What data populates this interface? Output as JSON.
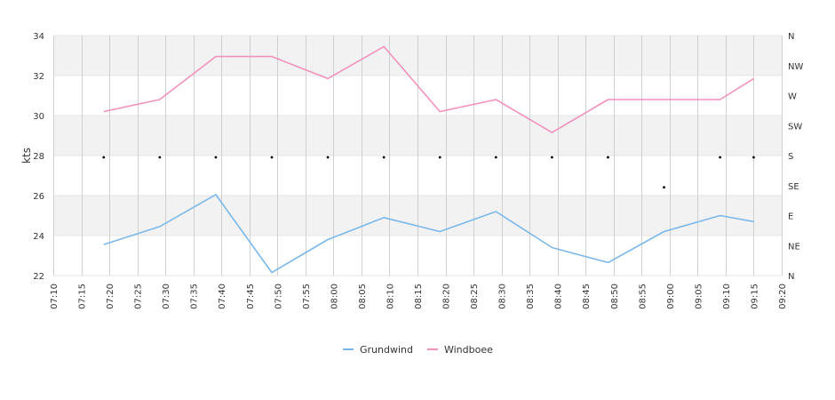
{
  "chart_data": {
    "type": "line",
    "ylabel": "kts",
    "ylim": [
      22,
      34
    ],
    "y_ticks": [
      "22",
      "24",
      "26",
      "28",
      "30",
      "32",
      "34"
    ],
    "x_tick_labels": [
      "07:10",
      "07:15",
      "07:20",
      "07:25",
      "07:30",
      "07:35",
      "07:40",
      "07:45",
      "07:50",
      "07:55",
      "08:00",
      "08:05",
      "08:10",
      "08:15",
      "08:20",
      "08:25",
      "08:30",
      "08:35",
      "08:40",
      "08:45",
      "08:50",
      "08:55",
      "09:00",
      "09:05",
      "09:10",
      "09:15",
      "09:20"
    ],
    "x": [
      "07:19",
      "07:29",
      "07:39",
      "07:49",
      "07:59",
      "08:09",
      "08:19",
      "08:29",
      "08:39",
      "08:49",
      "08:59",
      "09:09",
      "09:15"
    ],
    "series": [
      {
        "name": "Grundwind",
        "color": "#7ab8ec",
        "values": [
          23.55,
          24.45,
          26.05,
          22.15,
          23.8,
          24.9,
          24.2,
          25.2,
          23.4,
          22.65,
          24.2,
          25.0,
          24.7
        ]
      },
      {
        "name": "Windboee",
        "color": "#f391bd",
        "values": [
          30.2,
          30.8,
          32.95,
          32.95,
          31.85,
          33.45,
          30.2,
          30.8,
          29.15,
          30.8,
          30.8,
          30.8,
          31.85
        ]
      }
    ],
    "direction_axis": {
      "labels": [
        "N",
        "NE",
        "E",
        "SE",
        "S",
        "SW",
        "W",
        "NW",
        "N"
      ],
      "x": [
        "07:19",
        "07:29",
        "07:39",
        "07:49",
        "07:59",
        "08:09",
        "08:19",
        "08:29",
        "08:39",
        "08:49",
        "08:59",
        "09:09",
        "09:15"
      ],
      "values": [
        "S",
        "S",
        "S",
        "S",
        "S",
        "S",
        "S",
        "S",
        "S",
        "S",
        "SE",
        "S",
        "S"
      ]
    },
    "grid": true,
    "legend_position": "bottom-center"
  }
}
